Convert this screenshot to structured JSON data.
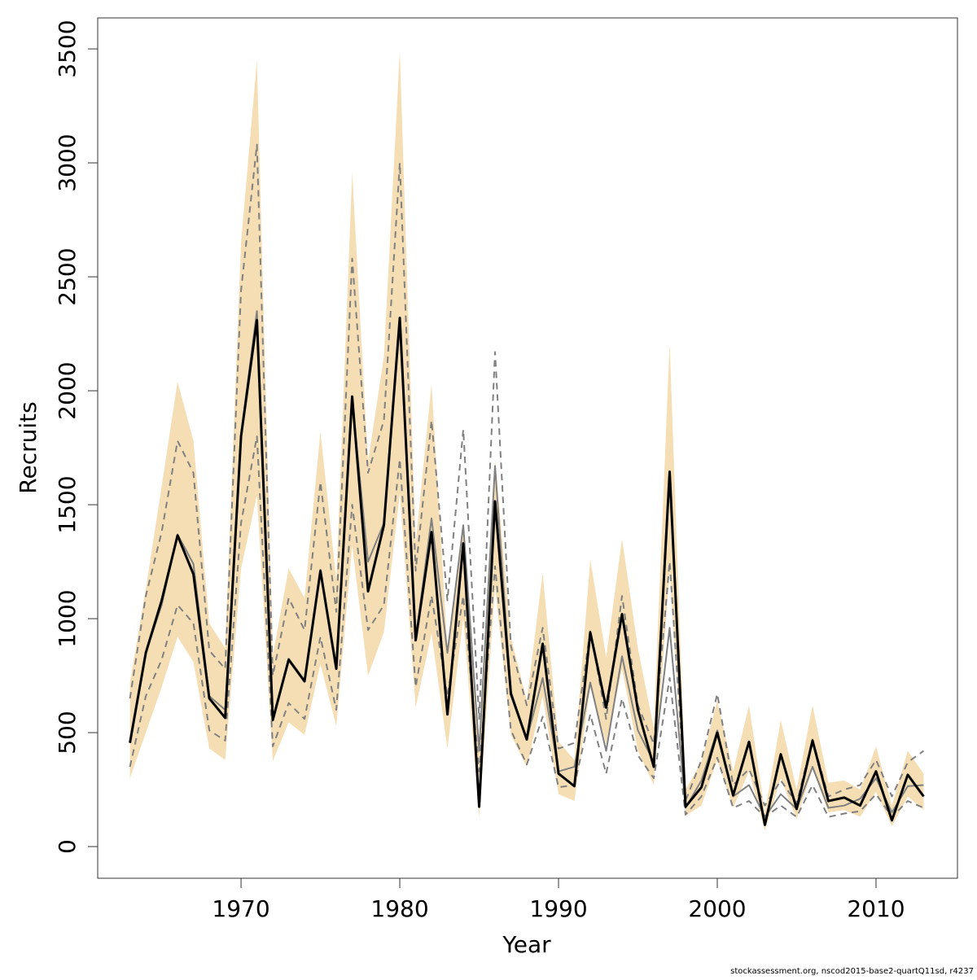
{
  "chart_data": {
    "type": "line",
    "xlabel": "Year",
    "ylabel": "Recruits",
    "footnote": "stockassessment.org, nscod2015-base2-quartQ11sd, r4237",
    "x": [
      1963,
      1964,
      1965,
      1966,
      1967,
      1968,
      1969,
      1970,
      1971,
      1972,
      1973,
      1974,
      1975,
      1976,
      1977,
      1978,
      1979,
      1980,
      1981,
      1982,
      1983,
      1984,
      1985,
      1986,
      1987,
      1988,
      1989,
      1990,
      1991,
      1992,
      1993,
      1994,
      1995,
      1996,
      1997,
      1998,
      1999,
      2000,
      2001,
      2002,
      2003,
      2004,
      2005,
      2006,
      2007,
      2008,
      2009,
      2010,
      2011,
      2012,
      2013
    ],
    "band": {
      "color": "#f5deb3",
      "upper": [
        720,
        1130,
        1580,
        2040,
        1780,
        980,
        870,
        2650,
        3450,
        840,
        1220,
        1090,
        1820,
        1170,
        2960,
        1690,
        2150,
        3490,
        1330,
        2030,
        870,
        1420,
        470,
        1700,
        920,
        640,
        1200,
        460,
        380,
        1260,
        830,
        1350,
        870,
        520,
        2210,
        250,
        370,
        640,
        330,
        620,
        150,
        555,
        250,
        620,
        280,
        290,
        250,
        440,
        180,
        420,
        320
      ],
      "lower": [
        300,
        500,
        700,
        920,
        810,
        430,
        380,
        1220,
        1540,
        375,
        545,
        490,
        800,
        530,
        1320,
        750,
        940,
        1550,
        610,
        935,
        430,
        1000,
        130,
        1140,
        490,
        350,
        660,
        230,
        200,
        700,
        450,
        780,
        420,
        270,
        1210,
        135,
        180,
        380,
        170,
        330,
        70,
        300,
        120,
        340,
        150,
        160,
        130,
        240,
        90,
        220,
        160
      ]
    },
    "series": [
      {
        "color": "#808080",
        "dash": true,
        "width": 2,
        "values": [
          650,
          1100,
          1380,
          1780,
          1640,
          860,
          780,
          2440,
          3080,
          750,
          1090,
          950,
          1600,
          1030,
          2580,
          1640,
          1870,
          3000,
          1210,
          1870,
          1080,
          1830,
          560,
          2170,
          880,
          620,
          960,
          430,
          455,
          950,
          560,
          1100,
          620,
          450,
          1250,
          200,
          380,
          670,
          270,
          340,
          180,
          290,
          190,
          470,
          220,
          250,
          270,
          380,
          220,
          370,
          420
        ]
      },
      {
        "color": "#808080",
        "dash": true,
        "width": 2,
        "values": [
          350,
          660,
          820,
          1060,
          980,
          510,
          465,
          1420,
          1800,
          440,
          630,
          560,
          920,
          600,
          1500,
          950,
          1060,
          1700,
          700,
          1100,
          660,
          1100,
          330,
          1230,
          510,
          360,
          570,
          260,
          270,
          580,
          320,
          650,
          400,
          300,
          740,
          140,
          220,
          390,
          170,
          200,
          130,
          180,
          130,
          270,
          130,
          145,
          155,
          230,
          130,
          200,
          170
        ]
      },
      {
        "color": "#808080",
        "dash": false,
        "width": 2,
        "values": [
          455,
          850,
          1060,
          1370,
          1240,
          660,
          600,
          1810,
          2350,
          565,
          825,
          730,
          1215,
          790,
          1960,
          1250,
          1420,
          2310,
          910,
          1440,
          850,
          1410,
          420,
          1670,
          680,
          470,
          740,
          330,
          350,
          720,
          420,
          835,
          510,
          370,
          960,
          170,
          290,
          510,
          220,
          270,
          130,
          230,
          165,
          350,
          170,
          180,
          210,
          300,
          150,
          265,
          270
        ]
      },
      {
        "color": "#000000",
        "dash": false,
        "width": 3,
        "values": [
          455,
          850,
          1080,
          1365,
          1195,
          650,
          565,
          1800,
          2310,
          555,
          820,
          725,
          1210,
          780,
          1975,
          1120,
          1410,
          2320,
          905,
          1380,
          580,
          1330,
          175,
          1515,
          670,
          470,
          890,
          320,
          265,
          940,
          610,
          1020,
          600,
          350,
          1645,
          175,
          260,
          500,
          225,
          460,
          95,
          405,
          165,
          465,
          200,
          215,
          180,
          330,
          115,
          315,
          220
        ]
      }
    ],
    "xlim": [
      1960.97,
      2015.13
    ],
    "xticks": [
      1970,
      1980,
      1990,
      2000,
      2010
    ],
    "ylim": [
      -139,
      3636
    ],
    "yticks": [
      0,
      500,
      1000,
      1500,
      2000,
      2500,
      3000,
      3500
    ]
  }
}
